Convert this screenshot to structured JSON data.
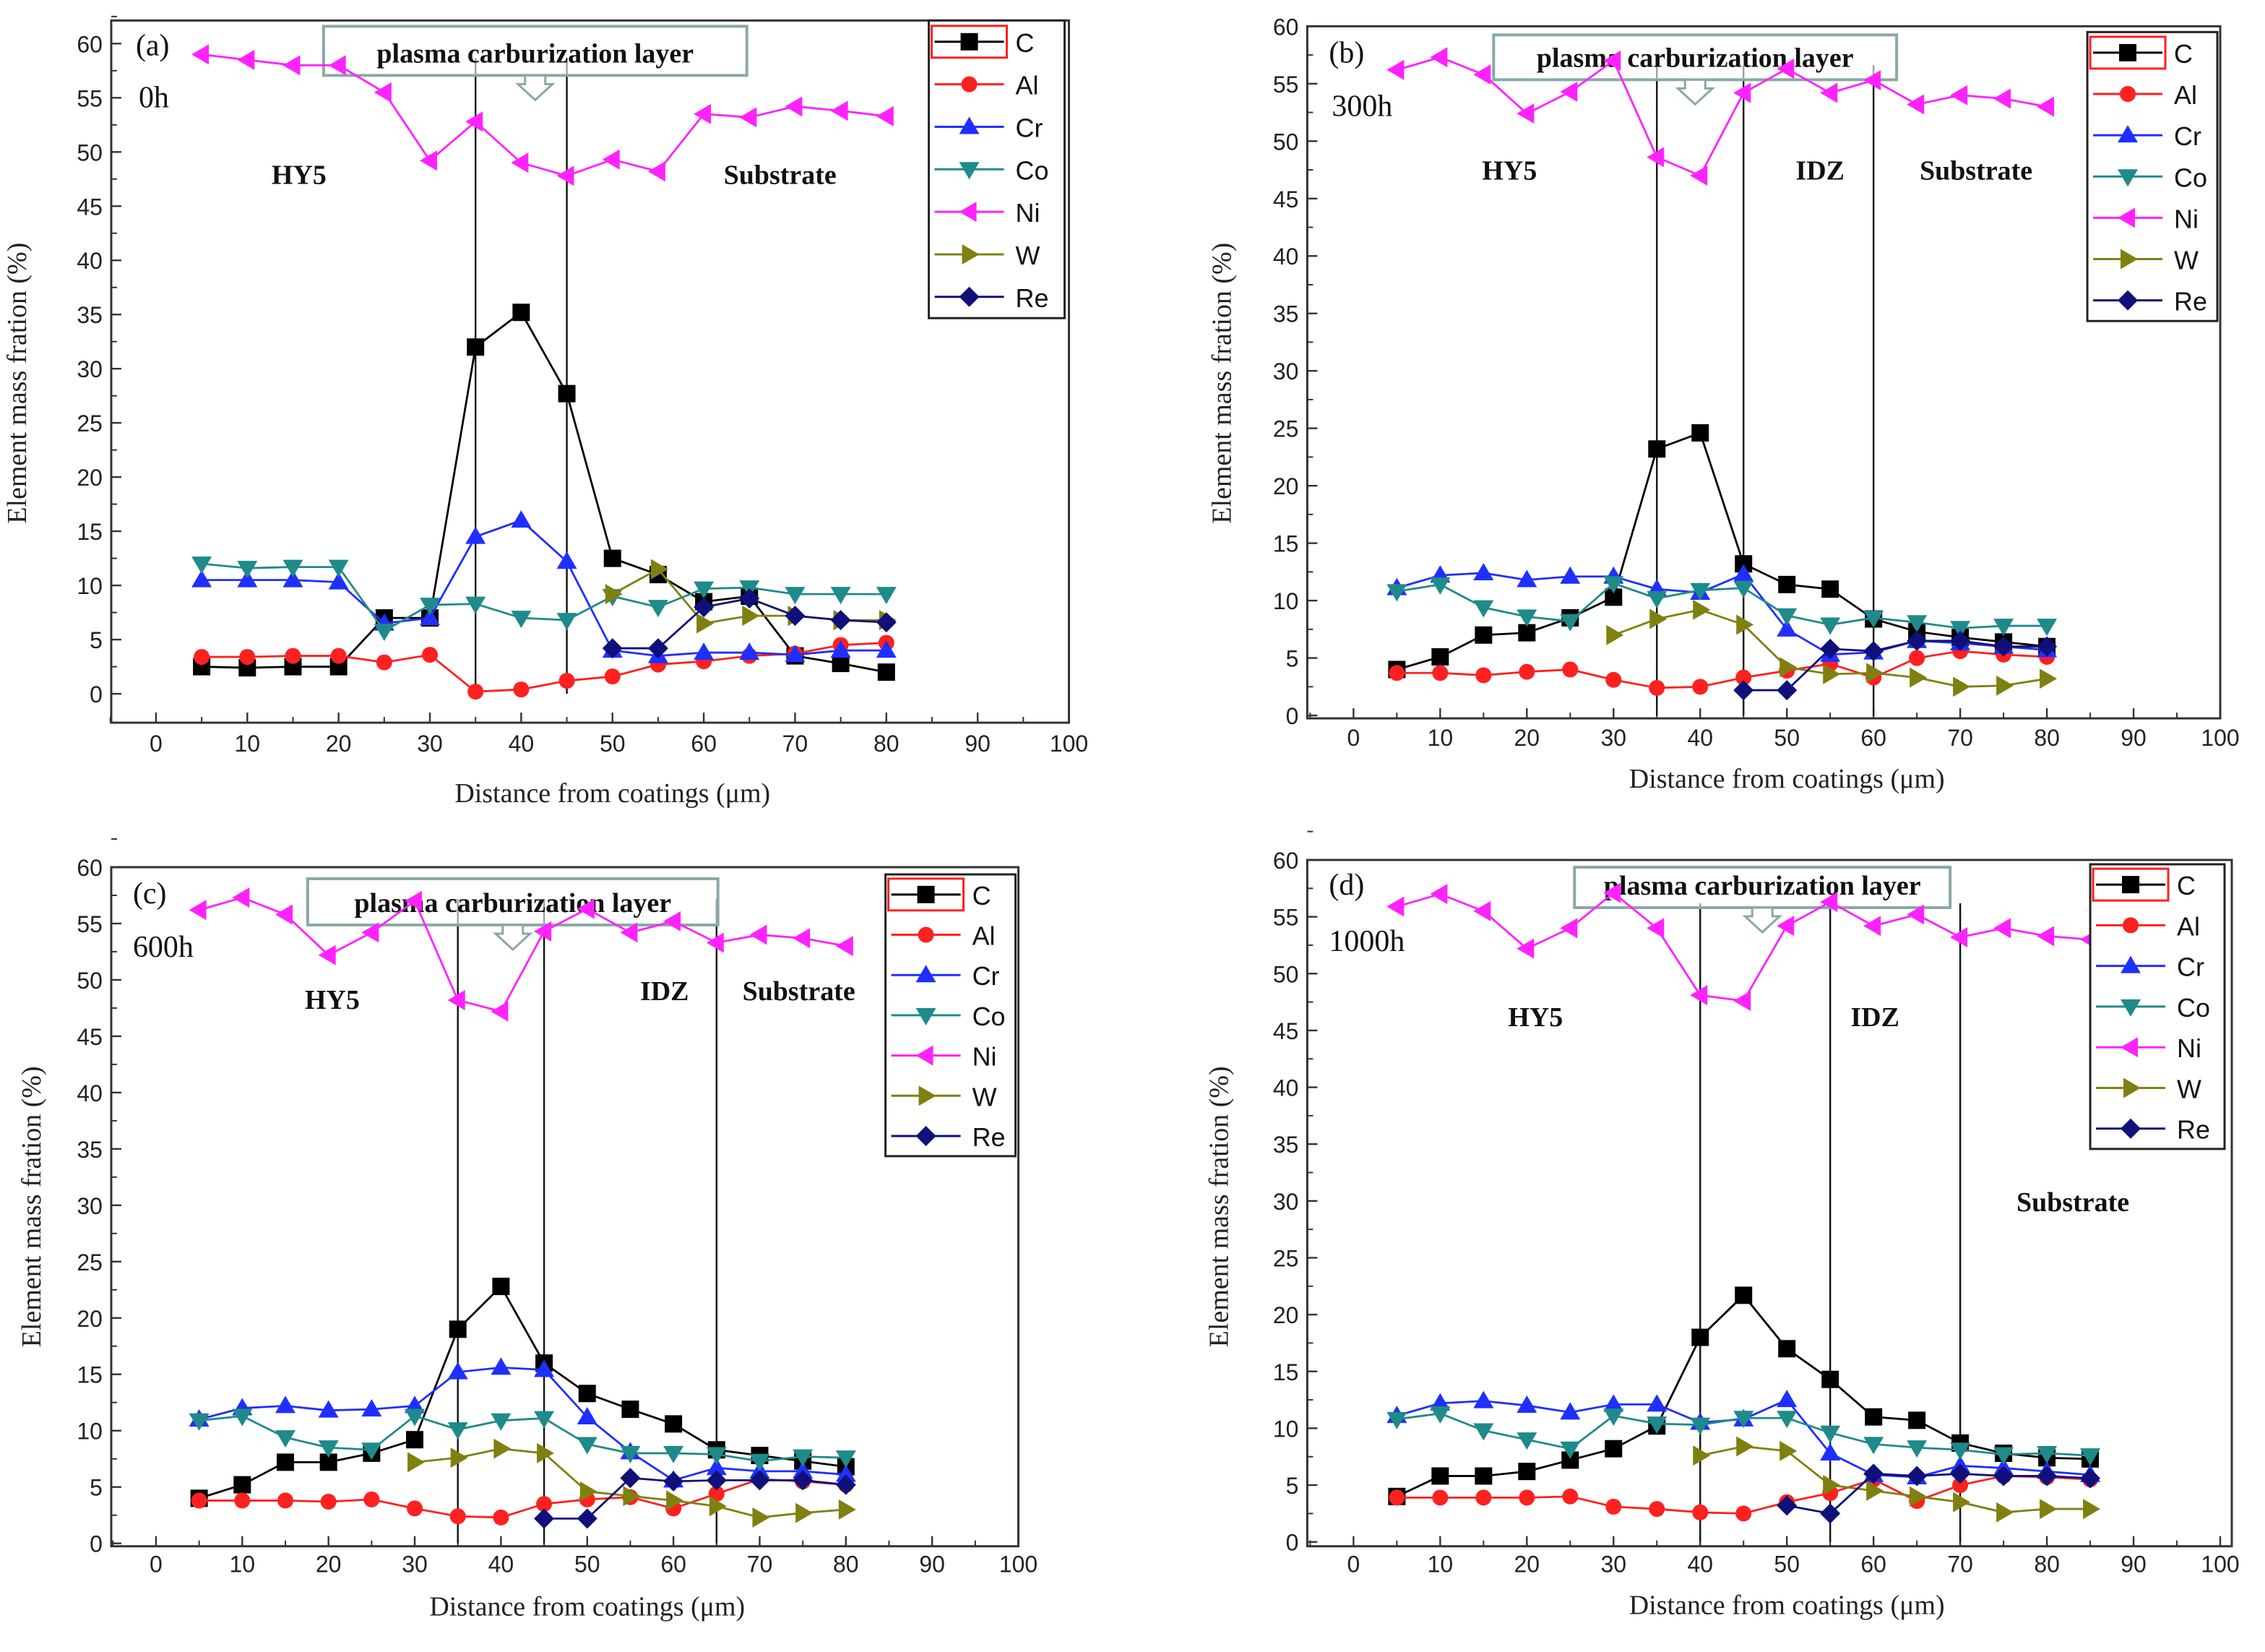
{
  "colors": {
    "C": "#000000",
    "Al": "#ff2020",
    "Cr": "#1f2fff",
    "Co": "#1f8a8a",
    "Ni": "#ff22ff",
    "W": "#808010",
    "Re": "#10107a"
  },
  "chart_data": [
    {
      "type": "line",
      "panel_label": "(a)",
      "time_label": "0h",
      "xlabel": "Distance from coatings (μm)",
      "ylabel": "Element mass fration (%)",
      "xlim": [
        0,
        100
      ],
      "ylim": [
        0,
        60
      ],
      "xticks": [
        0,
        10,
        20,
        30,
        40,
        50,
        60,
        70,
        80,
        90,
        100
      ],
      "yticks": [
        0,
        5,
        10,
        15,
        20,
        25,
        30,
        35,
        40,
        45,
        50,
        55,
        60
      ],
      "annotation": "plasma carburization layer",
      "boundaries": [
        35,
        45
      ],
      "regions": [
        "HY5",
        "Substrate"
      ],
      "legend": "top-right",
      "series": [
        {
          "name": "C",
          "x": [
            5,
            10,
            15,
            20,
            25,
            30,
            35,
            40,
            45,
            50,
            55,
            60,
            65,
            70,
            75,
            80
          ],
          "values": [
            2.5,
            2.4,
            2.5,
            2.5,
            7,
            7,
            32,
            35.2,
            27.7,
            12.5,
            11,
            8.5,
            9,
            3.5,
            2.8,
            2
          ]
        },
        {
          "name": "Al",
          "x": [
            5,
            10,
            15,
            20,
            25,
            30,
            35,
            40,
            45,
            50,
            55,
            60,
            65,
            70,
            75,
            80
          ],
          "values": [
            3.4,
            3.4,
            3.5,
            3.5,
            2.9,
            3.6,
            0.2,
            0.4,
            1.2,
            1.6,
            2.7,
            3,
            3.5,
            3.7,
            4.5,
            4.7
          ]
        },
        {
          "name": "Cr",
          "x": [
            5,
            10,
            15,
            20,
            25,
            30,
            35,
            40,
            45,
            50,
            55,
            60,
            65,
            70,
            75,
            80
          ],
          "values": [
            10.5,
            10.5,
            10.5,
            10.3,
            6.5,
            7,
            14.5,
            16,
            12.2,
            4,
            3.5,
            3.8,
            3.8,
            3.6,
            4,
            4
          ]
        },
        {
          "name": "Co",
          "x": [
            5,
            10,
            15,
            20,
            25,
            30,
            35,
            40,
            45,
            50,
            55,
            60,
            65,
            70,
            75,
            80
          ],
          "values": [
            12,
            11.6,
            11.7,
            11.7,
            5.8,
            8.2,
            8.3,
            7,
            6.8,
            9,
            8,
            9.7,
            9.8,
            9.2,
            9.2,
            9.2
          ]
        },
        {
          "name": "Ni",
          "x": [
            5,
            10,
            15,
            20,
            25,
            30,
            35,
            40,
            45,
            50,
            55,
            60,
            65,
            70,
            75,
            80
          ],
          "values": [
            59,
            58.5,
            58,
            58,
            55.5,
            49.2,
            52.8,
            49,
            47.8,
            49.3,
            48.2,
            53.5,
            53.2,
            54.2,
            53.8,
            53.3
          ]
        },
        {
          "name": "W",
          "x": [
            50,
            55,
            60,
            65,
            70,
            75,
            80
          ],
          "values": [
            9.2,
            11.5,
            6.5,
            7.2,
            7.2,
            6.8,
            6.8
          ]
        },
        {
          "name": "Re",
          "x": [
            50,
            55,
            60,
            65,
            70,
            75,
            80
          ],
          "values": [
            4.2,
            4.2,
            8,
            8.8,
            7.2,
            6.8,
            6.6
          ]
        }
      ]
    },
    {
      "type": "line",
      "panel_label": "(b)",
      "time_label": "300h",
      "xlabel": "Distance from coatings (μm)",
      "ylabel": "Element mass fration (%)",
      "xlim": [
        0,
        100
      ],
      "ylim": [
        0,
        60
      ],
      "xticks": [
        0,
        10,
        20,
        30,
        40,
        50,
        60,
        70,
        80,
        90,
        100
      ],
      "yticks": [
        0,
        5,
        10,
        15,
        20,
        25,
        30,
        35,
        40,
        45,
        50,
        55,
        60
      ],
      "annotation": "plasma carburization layer",
      "boundaries": [
        35,
        45,
        60
      ],
      "regions": [
        "HY5",
        "IDZ",
        "Substrate"
      ],
      "legend": "top-right",
      "series": [
        {
          "name": "C",
          "x": [
            5,
            10,
            15,
            20,
            25,
            30,
            35,
            40,
            45,
            50,
            55,
            60,
            65,
            70,
            75,
            80
          ],
          "values": [
            4,
            5.1,
            7,
            7.2,
            8.5,
            10.3,
            23.2,
            24.6,
            13.2,
            11.4,
            11,
            8.4,
            7.3,
            6.8,
            6.4,
            6
          ]
        },
        {
          "name": "Al",
          "x": [
            5,
            10,
            15,
            20,
            25,
            30,
            35,
            40,
            45,
            50,
            55,
            60,
            65,
            70,
            75,
            80
          ],
          "values": [
            3.7,
            3.7,
            3.5,
            3.8,
            4,
            3.1,
            2.4,
            2.5,
            3.3,
            3.9,
            4.5,
            3.3,
            5,
            5.6,
            5.3,
            5.1
          ]
        },
        {
          "name": "Cr",
          "x": [
            5,
            10,
            15,
            20,
            25,
            30,
            35,
            40,
            45,
            50,
            55,
            60,
            65,
            70,
            75,
            80
          ],
          "values": [
            11.1,
            12.2,
            12.4,
            11.8,
            12.1,
            12.1,
            11,
            10.7,
            12.3,
            7.5,
            5.3,
            5.5,
            6.5,
            6.3,
            6,
            5.7
          ]
        },
        {
          "name": "Co",
          "x": [
            5,
            10,
            15,
            20,
            25,
            30,
            35,
            40,
            45,
            50,
            55,
            60,
            65,
            70,
            75,
            80
          ],
          "values": [
            10.8,
            11.4,
            9.4,
            8.6,
            8.2,
            11.5,
            10.2,
            10.9,
            11.1,
            8.7,
            7.9,
            8.5,
            8.1,
            7.6,
            7.8,
            7.8
          ]
        },
        {
          "name": "Ni",
          "x": [
            5,
            10,
            15,
            20,
            25,
            30,
            35,
            40,
            45,
            50,
            55,
            60,
            65,
            70,
            75,
            80
          ],
          "values": [
            56.2,
            57.3,
            55.8,
            52.4,
            54.3,
            57,
            48.6,
            47,
            54.2,
            56.3,
            54.2,
            55.3,
            53.2,
            54,
            53.7,
            53
          ]
        },
        {
          "name": "W",
          "x": [
            30,
            35,
            40,
            45,
            50,
            55,
            60,
            65,
            70,
            75,
            80
          ],
          "values": [
            7,
            8.4,
            9.2,
            7.9,
            4.2,
            3.6,
            3.7,
            3.3,
            2.5,
            2.6,
            3.2
          ]
        },
        {
          "name": "Re",
          "x": [
            45,
            50,
            55,
            60,
            65,
            70,
            75,
            80
          ],
          "values": [
            2.2,
            2.2,
            5.8,
            5.6,
            6.5,
            6.5,
            6,
            6
          ]
        }
      ]
    },
    {
      "type": "line",
      "panel_label": "(c)",
      "time_label": "600h",
      "xlabel": "Distance from coatings (μm)",
      "ylabel": "Element mass fration (%)",
      "xlim": [
        0,
        100
      ],
      "ylim": [
        0,
        60
      ],
      "xticks": [
        0,
        10,
        20,
        30,
        40,
        50,
        60,
        70,
        80,
        90,
        100
      ],
      "yticks": [
        0,
        5,
        10,
        15,
        20,
        25,
        30,
        35,
        40,
        45,
        50,
        55,
        60
      ],
      "annotation": "plasma carburization layer",
      "boundaries": [
        35,
        45,
        65
      ],
      "regions": [
        "HY5",
        "IDZ",
        "Substrate"
      ],
      "legend": "top-right",
      "series": [
        {
          "name": "C",
          "x": [
            5,
            10,
            15,
            20,
            25,
            30,
            35,
            40,
            45,
            50,
            55,
            60,
            65,
            70,
            75,
            80
          ],
          "values": [
            4,
            5.2,
            7.2,
            7.2,
            8,
            9.2,
            19,
            22.8,
            16,
            13.3,
            11.9,
            10.6,
            8.3,
            7.8,
            7.3,
            6.8
          ]
        },
        {
          "name": "Al",
          "x": [
            5,
            10,
            15,
            20,
            25,
            30,
            35,
            40,
            45,
            50,
            55,
            60,
            65,
            70,
            75,
            80
          ],
          "values": [
            3.8,
            3.8,
            3.8,
            3.7,
            3.9,
            3.1,
            2.4,
            2.3,
            3.5,
            3.9,
            4.1,
            3.1,
            4.4,
            5.7,
            5.5,
            5.2
          ]
        },
        {
          "name": "Cr",
          "x": [
            5,
            10,
            15,
            20,
            25,
            30,
            35,
            40,
            45,
            50,
            55,
            60,
            65,
            70,
            75,
            80
          ],
          "values": [
            11,
            12,
            12.2,
            11.8,
            11.9,
            12.2,
            15.2,
            15.6,
            15.4,
            11.2,
            8.1,
            5.6,
            6.7,
            6.4,
            6.4,
            6.1
          ]
        },
        {
          "name": "Co",
          "x": [
            5,
            10,
            15,
            20,
            25,
            30,
            35,
            40,
            45,
            50,
            55,
            60,
            65,
            70,
            75,
            80
          ],
          "values": [
            10.9,
            11.3,
            9.4,
            8.5,
            8.3,
            11.3,
            10.1,
            10.9,
            11.1,
            8.8,
            8,
            8,
            7.9,
            7.3,
            7.7,
            7.6
          ]
        },
        {
          "name": "Ni",
          "x": [
            5,
            10,
            15,
            20,
            25,
            30,
            35,
            40,
            45,
            50,
            55,
            60,
            65,
            70,
            75,
            80
          ],
          "values": [
            56.2,
            57.3,
            55.8,
            52.2,
            54.2,
            57,
            48.2,
            47.2,
            54.3,
            56.3,
            54.2,
            55.2,
            53.3,
            54,
            53.7,
            53
          ]
        },
        {
          "name": "W",
          "x": [
            30,
            35,
            40,
            45,
            50,
            55,
            60,
            65,
            70,
            75,
            80
          ],
          "values": [
            7.2,
            7.6,
            8.4,
            8,
            4.6,
            4.2,
            3.8,
            3.3,
            2.3,
            2.7,
            3
          ]
        },
        {
          "name": "Re",
          "x": [
            45,
            50,
            55,
            60,
            65,
            70,
            75,
            80
          ],
          "values": [
            2.2,
            2.2,
            5.8,
            5.5,
            5.6,
            5.6,
            5.6,
            5.2
          ]
        }
      ]
    },
    {
      "type": "line",
      "panel_label": "(d)",
      "time_label": "1000h",
      "xlabel": "Distance from coatings (μm)",
      "ylabel": "Element mass fration (%)",
      "xlim": [
        0,
        100
      ],
      "ylim": [
        0,
        60
      ],
      "xticks": [
        0,
        10,
        20,
        30,
        40,
        50,
        60,
        70,
        80,
        90,
        100
      ],
      "yticks": [
        0,
        5,
        10,
        15,
        20,
        25,
        30,
        35,
        40,
        45,
        50,
        55,
        60
      ],
      "annotation": "plasma carburization layer",
      "boundaries": [
        40,
        55,
        70
      ],
      "regions": [
        "HY5",
        "IDZ",
        "Substrate"
      ],
      "legend": "top-right",
      "series": [
        {
          "name": "C",
          "x": [
            5,
            10,
            15,
            20,
            25,
            30,
            35,
            40,
            45,
            50,
            55,
            60,
            65,
            70,
            75,
            80,
            85
          ],
          "values": [
            4,
            5.8,
            5.8,
            6.2,
            7.2,
            8.2,
            10.2,
            18,
            21.7,
            17,
            14.3,
            11,
            10.7,
            8.7,
            7.8,
            7.4,
            7.3
          ]
        },
        {
          "name": "Al",
          "x": [
            5,
            10,
            15,
            20,
            25,
            30,
            35,
            40,
            45,
            50,
            55,
            60,
            65,
            70,
            75,
            80,
            85
          ],
          "values": [
            3.9,
            3.9,
            3.9,
            3.9,
            4,
            3.1,
            2.9,
            2.6,
            2.5,
            3.5,
            4.3,
            5.5,
            3.6,
            5,
            5.8,
            5.7,
            5.5
          ]
        },
        {
          "name": "Cr",
          "x": [
            5,
            10,
            15,
            20,
            25,
            30,
            35,
            40,
            45,
            50,
            55,
            60,
            65,
            70,
            75,
            80,
            85
          ],
          "values": [
            11.1,
            12.2,
            12.4,
            12,
            11.4,
            12.1,
            12.1,
            10.5,
            10.8,
            12.5,
            7.8,
            5.9,
            5.7,
            6.7,
            6.5,
            6.2,
            5.9
          ]
        },
        {
          "name": "Co",
          "x": [
            5,
            10,
            15,
            20,
            25,
            30,
            35,
            40,
            45,
            50,
            55,
            60,
            65,
            70,
            75,
            80,
            85
          ],
          "values": [
            10.8,
            11.3,
            9.8,
            9,
            8.2,
            11.1,
            10.4,
            10.3,
            10.9,
            10.9,
            9.6,
            8.6,
            8.3,
            8.1,
            7.7,
            7.8,
            7.6
          ]
        },
        {
          "name": "Ni",
          "x": [
            5,
            10,
            15,
            20,
            25,
            30,
            35,
            40,
            45,
            50,
            55,
            60,
            65,
            70,
            75,
            80,
            85
          ],
          "values": [
            55.9,
            57,
            55.5,
            52.2,
            54,
            57.1,
            54,
            48.1,
            47.6,
            54.2,
            56.3,
            54.2,
            55.2,
            53.2,
            54,
            53.3,
            53
          ]
        },
        {
          "name": "W",
          "x": [
            40,
            45,
            50,
            55,
            60,
            65,
            70,
            75,
            80,
            85
          ],
          "values": [
            7.6,
            8.4,
            8,
            5,
            4.5,
            4,
            3.5,
            2.6,
            2.9,
            2.9
          ]
        },
        {
          "name": "Re",
          "x": [
            50,
            55,
            60,
            65,
            70,
            75,
            80,
            85
          ],
          "values": [
            3.2,
            2.5,
            6,
            5.8,
            6,
            5.8,
            5.8,
            5.6
          ]
        }
      ]
    }
  ]
}
